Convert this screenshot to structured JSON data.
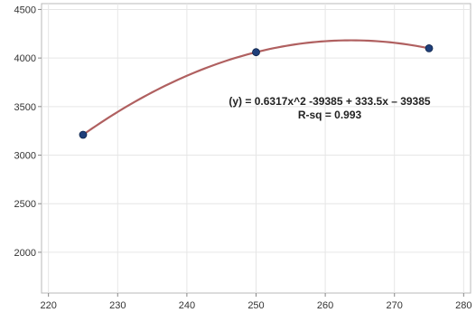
{
  "chart_data": {
    "type": "scatter",
    "x": [
      225,
      250,
      275
    ],
    "y": [
      3210,
      4060,
      4100
    ],
    "x_ticks": [
      220,
      230,
      240,
      250,
      260,
      270,
      280
    ],
    "y_ticks": [
      2000,
      2500,
      3000,
      3500,
      4000,
      4500
    ],
    "xlim": [
      219,
      281
    ],
    "ylim": [
      1580,
      4560
    ],
    "grid": true,
    "marker_color": "#1f3f7a",
    "fit_line": {
      "type": "quadratic",
      "color": "#b06060",
      "through_points": [
        [
          225,
          3210
        ],
        [
          250,
          4060
        ],
        [
          275,
          4100
        ]
      ]
    },
    "annotations": [
      "(y) = 0.6317x^2 -39385 + 333.5x – 39385",
      "R-sq = 0.993"
    ]
  }
}
